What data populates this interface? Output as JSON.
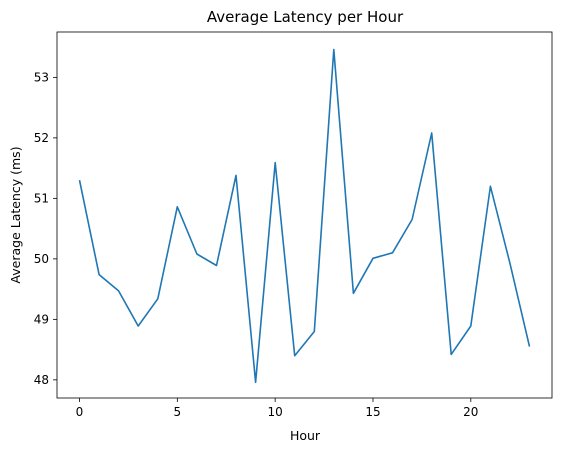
{
  "chart_data": {
    "type": "line",
    "title": "Average Latency per Hour",
    "xlabel": "Hour",
    "ylabel": "Average Latency (ms)",
    "xlim": [
      -1.15,
      24.15
    ],
    "ylim": [
      47.7,
      53.75
    ],
    "xticks": [
      0,
      5,
      10,
      15,
      20
    ],
    "yticks": [
      48,
      49,
      50,
      51,
      52,
      53
    ],
    "grid": false,
    "series": [
      {
        "color": "#1f77b4",
        "x": [
          0,
          1,
          2,
          3,
          4,
          5,
          6,
          7,
          8,
          9,
          10,
          11,
          12,
          13,
          14,
          15,
          16,
          17,
          18,
          19,
          20,
          21,
          22,
          23
        ],
        "values": [
          51.3,
          49.74,
          49.47,
          48.89,
          49.34,
          50.86,
          50.08,
          49.89,
          51.38,
          47.96,
          51.59,
          48.4,
          48.8,
          53.46,
          49.43,
          50.01,
          50.1,
          50.65,
          52.08,
          48.42,
          48.89,
          51.2,
          49.93,
          48.55
        ]
      }
    ]
  }
}
